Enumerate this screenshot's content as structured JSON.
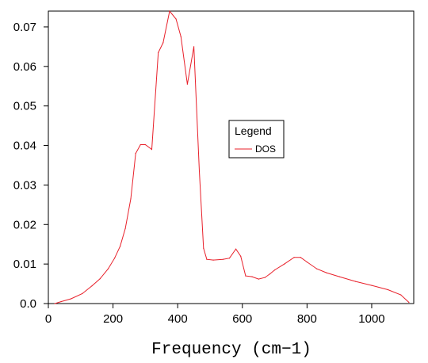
{
  "chart_data": {
    "type": "line",
    "title": "",
    "xlabel": "Frequency (cm−1)",
    "ylabel": "",
    "xlim": [
      0,
      1130
    ],
    "ylim": [
      0,
      0.074
    ],
    "xticks": [
      0,
      200,
      400,
      600,
      800,
      1000
    ],
    "xtick_labels": [
      "0",
      "200",
      "400",
      "600",
      "800",
      "1000"
    ],
    "yticks": [
      0,
      0.01,
      0.02,
      0.03,
      0.04,
      0.05,
      0.06,
      0.07
    ],
    "ytick_labels": [
      "0.0",
      "0.01",
      "0.02",
      "0.03",
      "0.04",
      "0.05",
      "0.06",
      "0.07"
    ],
    "grid": false,
    "legend": {
      "title": "Legend",
      "placement": "center-right",
      "entries": [
        "DOS"
      ]
    },
    "series": [
      {
        "name": "DOS",
        "color": "#e8202a",
        "x": [
          20,
          40,
          70,
          105,
          135,
          160,
          185,
          205,
          222,
          238,
          255,
          270,
          285,
          300,
          320,
          340,
          355,
          375,
          395,
          410,
          430,
          450,
          467,
          480,
          490,
          510,
          540,
          560,
          580,
          595,
          610,
          630,
          650,
          670,
          685,
          700,
          730,
          760,
          780,
          800,
          830,
          860,
          900,
          950,
          1000,
          1050,
          1090,
          1115
        ],
        "y": [
          0.0,
          0.0005,
          0.0012,
          0.0025,
          0.0045,
          0.0063,
          0.0088,
          0.0115,
          0.0145,
          0.019,
          0.0265,
          0.038,
          0.0402,
          0.0402,
          0.039,
          0.0635,
          0.066,
          0.074,
          0.072,
          0.0675,
          0.0555,
          0.065,
          0.0335,
          0.014,
          0.0112,
          0.011,
          0.0112,
          0.0115,
          0.0138,
          0.012,
          0.007,
          0.0068,
          0.0062,
          0.0066,
          0.0075,
          0.0085,
          0.01,
          0.0117,
          0.0117,
          0.0105,
          0.0088,
          0.0078,
          0.0068,
          0.0056,
          0.0046,
          0.0035,
          0.0022,
          0.0003
        ]
      }
    ]
  }
}
